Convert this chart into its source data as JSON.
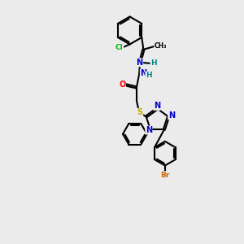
{
  "bg_color": "#ebebeb",
  "bond_color": "#000000",
  "bond_width": 1.5,
  "atom_colors": {
    "C": "#000000",
    "N": "#0000cc",
    "O": "#ff0000",
    "S": "#ccaa00",
    "Cl": "#00bb00",
    "Br": "#cc6600",
    "H": "#008888"
  },
  "figsize": [
    3.0,
    3.0
  ],
  "dpi": 100,
  "xlim": [
    -1.5,
    1.5
  ],
  "ylim": [
    -2.8,
    2.8
  ]
}
